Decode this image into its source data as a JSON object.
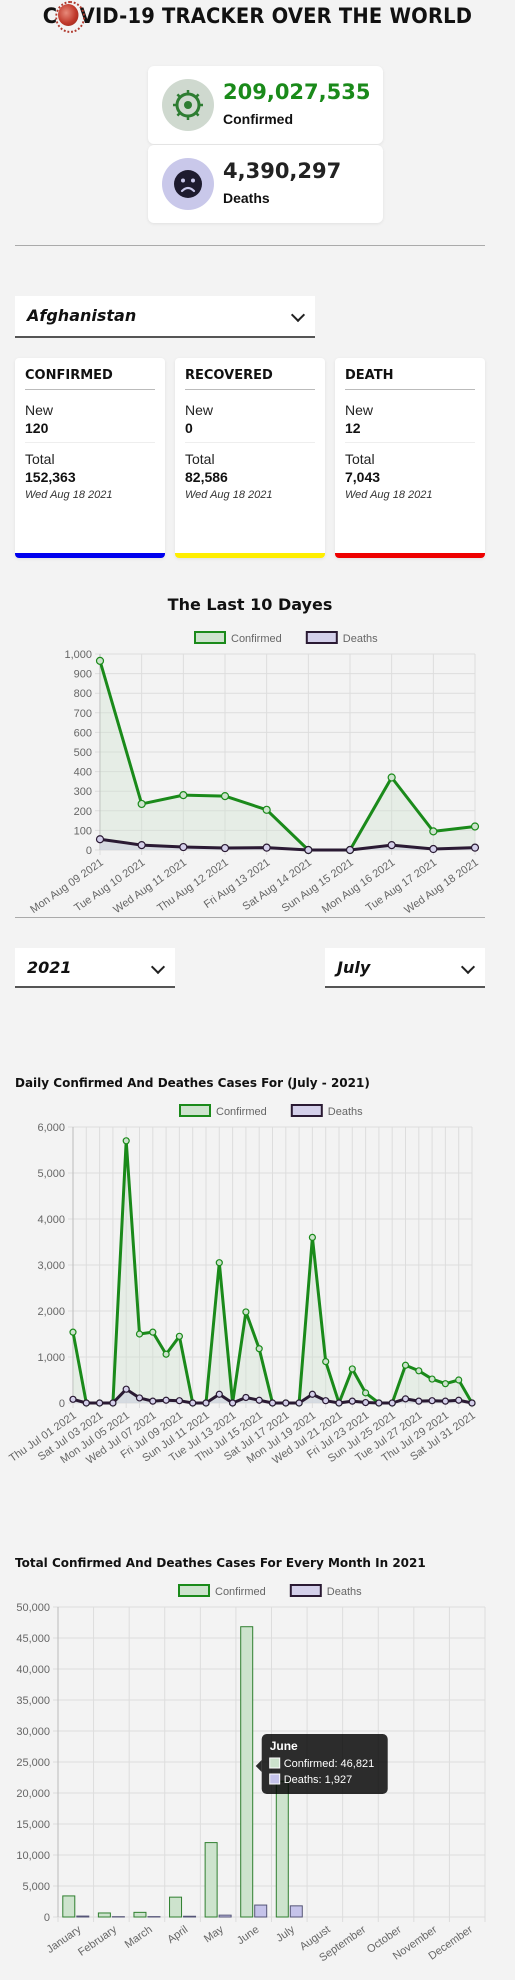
{
  "header": {
    "title_prefix": "C",
    "title_suffix": "VID-19 TRACKER OVER THE WORLD"
  },
  "global": {
    "confirmed": {
      "value": "209,027,535",
      "label": "Confirmed",
      "color": "#1a8a1a"
    },
    "deaths": {
      "value": "4,390,297",
      "label": "Deaths",
      "color": "#222222"
    }
  },
  "country_select": {
    "value": "Afghanistan"
  },
  "cards": [
    {
      "title": "CONFIRMED",
      "new_label": "New",
      "new_value": "120",
      "total_label": "Total",
      "total_value": "152,363",
      "date": "Wed Aug 18 2021",
      "color": "#0000ee"
    },
    {
      "title": "RECOVERED",
      "new_label": "New",
      "new_value": "0",
      "total_label": "Total",
      "total_value": "82,586",
      "date": "Wed Aug 18 2021",
      "color": "#ffee00"
    },
    {
      "title": "DEATH",
      "new_label": "New",
      "new_value": "12",
      "total_label": "Total",
      "total_value": "7,043",
      "date": "Wed Aug 18 2021",
      "color": "#ee0000"
    }
  ],
  "year_select": {
    "value": "2021"
  },
  "month_select": {
    "value": "July"
  },
  "chart_data": [
    {
      "type": "line",
      "title": "The Last 10 Dayes",
      "legend": [
        "Confirmed",
        "Deaths"
      ],
      "categories": [
        "Mon Aug 09 2021",
        "Tue Aug 10 2021",
        "Wed Aug 11 2021",
        "Thu Aug 12 2021",
        "Fri Aug 13 2021",
        "Sat Aug 14 2021",
        "Sun Aug 15 2021",
        "Mon Aug 16 2021",
        "Tue Aug 17 2021",
        "Wed Aug 18 2021"
      ],
      "series": [
        {
          "name": "Confirmed",
          "values": [
            965,
            235,
            280,
            275,
            205,
            0,
            0,
            370,
            95,
            120
          ]
        },
        {
          "name": "Deaths",
          "values": [
            55,
            25,
            15,
            10,
            12,
            0,
            0,
            25,
            5,
            12
          ]
        }
      ],
      "ylim": [
        0,
        1000
      ],
      "yticks": [
        "0",
        "100",
        "200",
        "300",
        "400",
        "500",
        "600",
        "700",
        "800",
        "900",
        "1,000"
      ],
      "xlabel": "",
      "ylabel": ""
    },
    {
      "type": "line",
      "title": "Daily Confirmed And Deathes Cases For (July - 2021)",
      "legend": [
        "Confirmed",
        "Deaths"
      ],
      "categories": [
        "Thu Jul 01 2021",
        "Fri Jul 02 2021",
        "Sat Jul 03 2021",
        "Sun Jul 04 2021",
        "Mon Jul 05 2021",
        "Tue Jul 06 2021",
        "Wed Jul 07 2021",
        "Thu Jul 08 2021",
        "Fri Jul 09 2021",
        "Sat Jul 10 2021",
        "Sun Jul 11 2021",
        "Mon Jul 12 2021",
        "Tue Jul 13 2021",
        "Wed Jul 14 2021",
        "Thu Jul 15 2021",
        "Fri Jul 16 2021",
        "Sat Jul 17 2021",
        "Sun Jul 18 2021",
        "Mon Jul 19 2021",
        "Tue Jul 20 2021",
        "Wed Jul 21 2021",
        "Thu Jul 22 2021",
        "Fri Jul 23 2021",
        "Sat Jul 24 2021",
        "Sun Jul 25 2021",
        "Mon Jul 26 2021",
        "Tue Jul 27 2021",
        "Wed Jul 28 2021",
        "Thu Jul 29 2021",
        "Fri Jul 30 2021",
        "Sat Jul 31 2021"
      ],
      "shown_tick_labels": [
        "Thu Jul 01 2021",
        "Sat Jul 03 2021",
        "Mon Jul 05 2021",
        "Wed Jul 07 2021",
        "Fri Jul 09 2021",
        "Sun Jul 11 2021",
        "Tue Jul 13 2021",
        "Thu Jul 15 2021",
        "Sat Jul 17 2021",
        "Mon Jul 19 2021",
        "Wed Jul 21 2021",
        "Fri Jul 23 2021",
        "Sun Jul 25 2021",
        "Tue Jul 27 2021",
        "Thu Jul 29 2021",
        "Sat Jul 31 2021"
      ],
      "series": [
        {
          "name": "Confirmed",
          "values": [
            1540,
            0,
            0,
            0,
            5700,
            1500,
            1540,
            1060,
            1450,
            0,
            0,
            3050,
            0,
            1980,
            1180,
            0,
            0,
            0,
            3600,
            900,
            0,
            740,
            220,
            0,
            0,
            820,
            700,
            520,
            420,
            500,
            0
          ]
        },
        {
          "name": "Deaths",
          "values": [
            80,
            0,
            0,
            0,
            300,
            110,
            40,
            60,
            50,
            0,
            0,
            190,
            0,
            120,
            60,
            0,
            0,
            0,
            190,
            50,
            0,
            40,
            10,
            0,
            0,
            90,
            40,
            50,
            40,
            60,
            0
          ]
        }
      ],
      "ylim": [
        0,
        6000
      ],
      "yticks": [
        "0",
        "1,000",
        "2,000",
        "3,000",
        "4,000",
        "5,000",
        "6,000"
      ],
      "xlabel": "",
      "ylabel": ""
    },
    {
      "type": "bar",
      "title": "Total Confirmed And Deathes Cases For Every Month In 2021",
      "legend": [
        "Confirmed",
        "Deaths"
      ],
      "categories": [
        "January",
        "February",
        "March",
        "April",
        "May",
        "June",
        "July",
        "August",
        "September",
        "October",
        "November",
        "December"
      ],
      "series": [
        {
          "name": "Confirmed",
          "values": [
            3400,
            650,
            750,
            3200,
            12000,
            46821,
            21900,
            0,
            0,
            0,
            0,
            0
          ]
        },
        {
          "name": "Deaths",
          "values": [
            150,
            50,
            60,
            120,
            300,
            1927,
            1800,
            0,
            0,
            0,
            0,
            0
          ]
        }
      ],
      "ylim": [
        0,
        50000
      ],
      "yticks": [
        "0",
        "5,000",
        "10,000",
        "15,000",
        "20,000",
        "25,000",
        "30,000",
        "35,000",
        "40,000",
        "45,000",
        "50,000"
      ],
      "tooltip": {
        "title": "June",
        "lines": [
          "Confirmed: 46,821",
          "Deaths: 1,927"
        ]
      },
      "xlabel": "",
      "ylabel": ""
    }
  ],
  "colors": {
    "confirmed_line": "#1a8a1a",
    "confirmed_fill": "#cde3cd",
    "deaths_line": "#2a1a33",
    "deaths_fill": "#d4d0ea",
    "bar_conf_fill": "#cde3cd",
    "bar_conf_border": "#2f7f2f",
    "bar_death_fill": "#c5c3ea",
    "bar_death_border": "#555577"
  }
}
